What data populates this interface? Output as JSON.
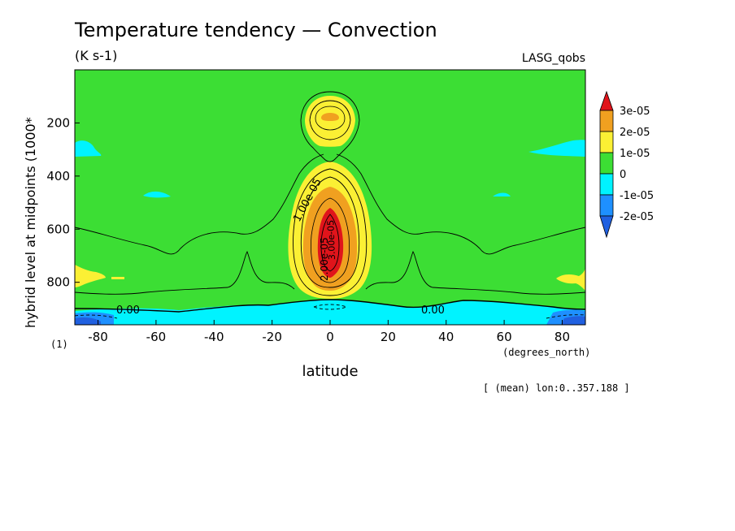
{
  "chart_data": {
    "type": "heatmap",
    "title": "Temperature tendency — Convection",
    "units": "(K s-1)",
    "model_label": "LASG_qobs",
    "xlabel": "latitude",
    "x_units": "(degrees_north)",
    "ylabel": "hybrid level at midpoints (1000*",
    "y_scale_note": "(1)",
    "subset_note": "[ (mean) lon:0..357.188 ]",
    "xlim": [
      -88,
      88
    ],
    "ylim": [
      0,
      960
    ],
    "y_inverted": true,
    "x_ticks": [
      -80,
      -60,
      -40,
      -20,
      0,
      20,
      40,
      60,
      80
    ],
    "y_ticks": [
      200,
      400,
      600,
      800
    ],
    "colorbar": {
      "labels": [
        "3e-05",
        "2e-05",
        "1e-05",
        "0",
        "-1e-05",
        "-2e-05"
      ],
      "colors": [
        "#e0141b",
        "#f0a020",
        "#fbf034",
        "#3cde34",
        "#00f3ff",
        "#1e90ff",
        "#2060e0"
      ]
    },
    "contour_labels": [
      "0.00",
      "0.00",
      "1.00e-05",
      "2.00e-05",
      "3.00e-05"
    ]
  }
}
